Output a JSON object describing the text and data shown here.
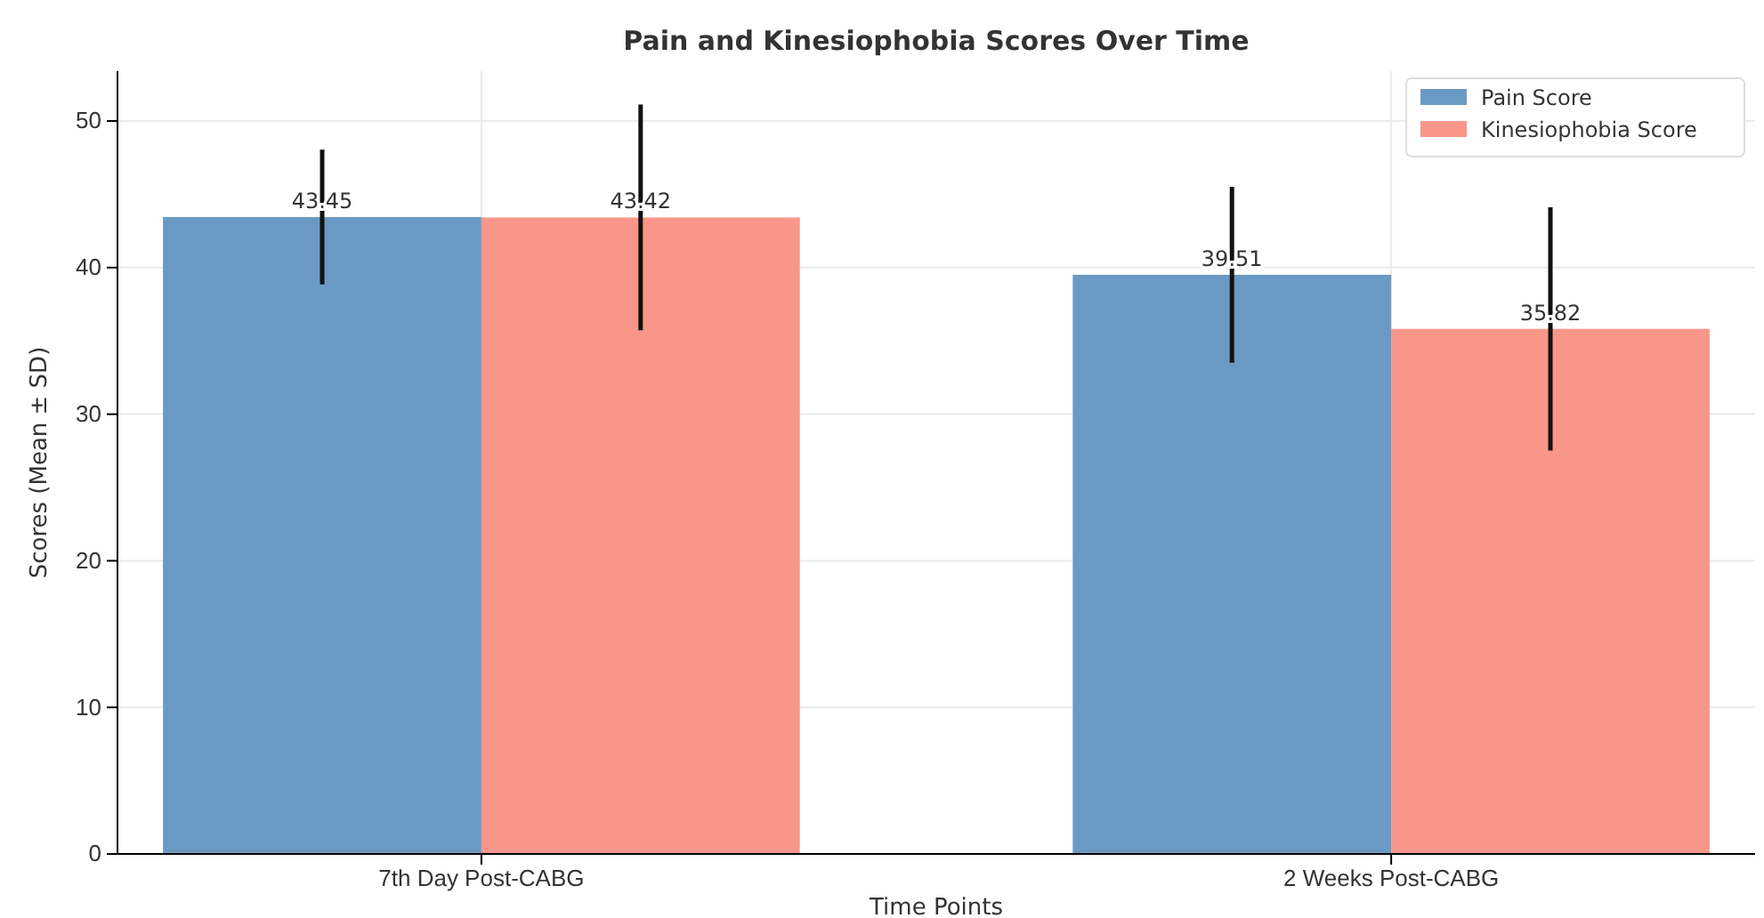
{
  "chart_data": {
    "type": "bar",
    "title": "Pain and Kinesiophobia Scores Over Time",
    "xlabel": "Time Points",
    "ylabel": "Scores (Mean ± SD)",
    "categories": [
      "7th Day Post-CABG",
      "2 Weeks Post-CABG"
    ],
    "series": [
      {
        "name": "Pain Score",
        "color": "#6a9ac4",
        "values": [
          43.45,
          39.51
        ],
        "errors": [
          4.6,
          6.0
        ]
      },
      {
        "name": "Kinesiophobia Score",
        "color": "#f8968a",
        "values": [
          43.42,
          35.82
        ],
        "errors": [
          7.7,
          8.3
        ]
      }
    ],
    "ylim": [
      0,
      53.4
    ],
    "yticks": [
      0,
      10,
      20,
      30,
      40,
      50
    ],
    "grid": true,
    "legend": "top right",
    "data_labels": true
  }
}
